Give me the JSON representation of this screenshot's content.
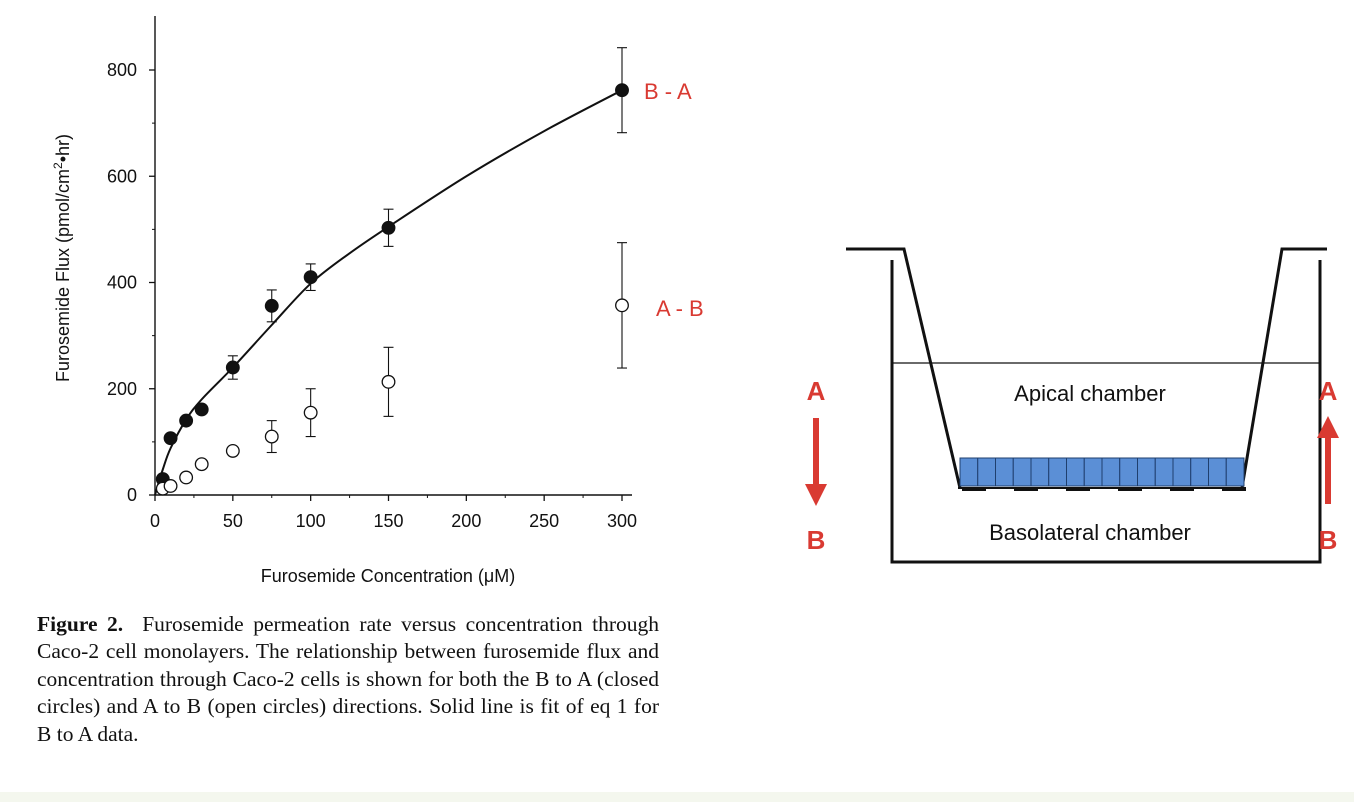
{
  "chart_data": {
    "type": "scatter",
    "xlabel": "Furosemide Concentration (μM)",
    "ylabel_main": "Furosemide Flux (pmol/cm",
    "ylabel_sup": "2",
    "ylabel_tail": "•hr)",
    "xlim": [
      0,
      300
    ],
    "ylim": [
      0,
      800
    ],
    "x_ticks": [
      0,
      50,
      100,
      150,
      200,
      250,
      300
    ],
    "y_ticks": [
      0,
      200,
      400,
      600,
      800
    ],
    "grid": false,
    "series": [
      {
        "name": "B - A",
        "marker": "closed-circle",
        "color": "#111111",
        "label_color": "#d93a32",
        "x": [
          5,
          10,
          20,
          30,
          50,
          75,
          100,
          150,
          300
        ],
        "y": [
          30,
          107,
          140,
          161,
          240,
          356,
          410,
          503,
          762
        ],
        "err": [
          0,
          0,
          0,
          0,
          22,
          30,
          25,
          35,
          80
        ]
      },
      {
        "name": "A - B",
        "marker": "open-circle",
        "color": "#111111",
        "label_color": "#d93a32",
        "x": [
          5,
          10,
          20,
          30,
          50,
          75,
          100,
          150,
          300
        ],
        "y": [
          12,
          17,
          33,
          58,
          83,
          110,
          155,
          213,
          357
        ],
        "err": [
          0,
          0,
          0,
          0,
          0,
          30,
          45,
          65,
          118
        ]
      }
    ],
    "fit": {
      "applies_to": "B - A",
      "x": [
        0,
        5,
        10,
        20,
        30,
        50,
        75,
        100,
        125,
        150,
        200,
        250,
        300
      ],
      "y": [
        0,
        48,
        88,
        142,
        180,
        240,
        320,
        398,
        455,
        505,
        600,
        685,
        762
      ]
    }
  },
  "caption": {
    "label": "Figure 2.",
    "text": "Furosemide permeation rate versus concentration through Caco-2 cell monolayers. The relationship between furosemide flux and concentration through Caco-2 cells is shown for both the B to A (closed circles) and A to B (open circles) directions. Solid line is fit of eq 1 for B to A data."
  },
  "diagram": {
    "apical_label": "Apical chamber",
    "basolateral_label": "Basolateral chamber",
    "left_arrow": {
      "from": "A",
      "to": "B"
    },
    "right_arrow": {
      "from": "B",
      "to": "A"
    },
    "cell_color": "#5b8fd6",
    "arrow_color": "#d93a32"
  }
}
